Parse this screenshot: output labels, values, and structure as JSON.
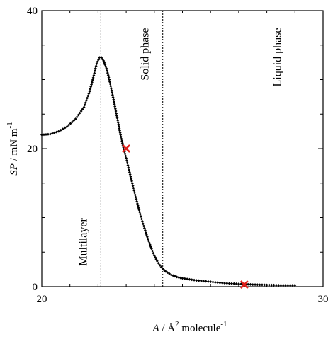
{
  "chart_data": {
    "type": "scatter",
    "xlim": [
      20,
      30
    ],
    "ylim": [
      0,
      40
    ],
    "x_ticks": [
      20,
      30
    ],
    "y_ticks": [
      0,
      20,
      40
    ],
    "xlabel": {
      "var": "A",
      "rest": " / Å",
      "sup1": "2",
      "mid": " molecule",
      "sup2": "-1"
    },
    "ylabel": {
      "var": "SP",
      "rest": " / mN m",
      "sup": "-1"
    },
    "grid": false,
    "series": [
      {
        "marker": "diamond",
        "color": "#000000",
        "points": [
          [
            20.0,
            22.0
          ],
          [
            20.3,
            22.1
          ],
          [
            20.6,
            22.5
          ],
          [
            20.9,
            23.2
          ],
          [
            21.2,
            24.3
          ],
          [
            21.5,
            26.0
          ],
          [
            21.7,
            28.3
          ],
          [
            21.85,
            30.6
          ],
          [
            21.95,
            32.3
          ],
          [
            22.05,
            33.2
          ],
          [
            22.12,
            33.2
          ],
          [
            22.2,
            32.7
          ],
          [
            22.3,
            31.6
          ],
          [
            22.4,
            30.0
          ],
          [
            22.5,
            28.1
          ],
          [
            22.6,
            26.1
          ],
          [
            22.7,
            24.1
          ],
          [
            22.8,
            22.0
          ],
          [
            22.9,
            20.2
          ],
          [
            23.0,
            18.6
          ],
          [
            23.1,
            16.9
          ],
          [
            23.2,
            15.3
          ],
          [
            23.3,
            13.6
          ],
          [
            23.4,
            12.0
          ],
          [
            23.5,
            10.5
          ],
          [
            23.6,
            9.1
          ],
          [
            23.7,
            7.8
          ],
          [
            23.8,
            6.6
          ],
          [
            23.9,
            5.5
          ],
          [
            24.0,
            4.5
          ],
          [
            24.1,
            3.7
          ],
          [
            24.2,
            3.1
          ],
          [
            24.3,
            2.6
          ],
          [
            24.4,
            2.2
          ],
          [
            24.6,
            1.7
          ],
          [
            24.8,
            1.4
          ],
          [
            25.0,
            1.2
          ],
          [
            25.5,
            0.9
          ],
          [
            26.0,
            0.7
          ],
          [
            26.5,
            0.5
          ],
          [
            27.0,
            0.4
          ],
          [
            27.5,
            0.3
          ],
          [
            28.0,
            0.25
          ],
          [
            28.5,
            0.2
          ],
          [
            29.0,
            0.2
          ]
        ]
      }
    ],
    "highlights": [
      {
        "x": 23.0,
        "y": 20.0,
        "marker": "x",
        "color": "#e0201b"
      },
      {
        "x": 27.2,
        "y": 0.3,
        "marker": "x",
        "color": "#e0201b"
      }
    ],
    "vlines": [
      {
        "x": 22.1,
        "style": "dotted",
        "label": "Multilayer",
        "label_y": 3
      },
      {
        "x": 24.3,
        "style": "dotted",
        "label": "Solid phase",
        "label_y": 37.5
      }
    ],
    "annotations": [
      {
        "text": "Liquid phase",
        "x": 28.5,
        "y": 37.5,
        "rotation": -90
      }
    ]
  }
}
